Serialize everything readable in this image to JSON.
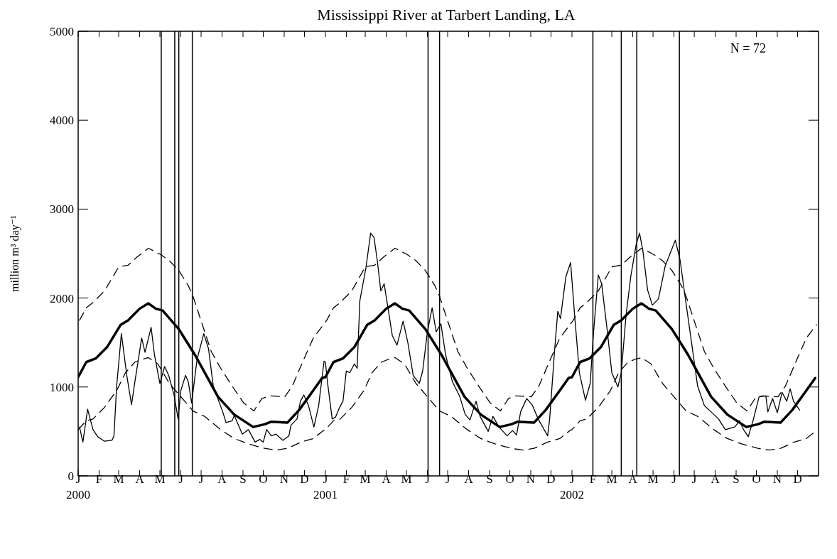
{
  "chart_data": {
    "type": "line",
    "title": "Mississippi River at Tarbert Landing, LA",
    "ylabel": "million m³ day⁻¹",
    "annotations": [
      "N = 72"
    ],
    "marker": "none",
    "xlim": [
      "2000-01-01",
      "2003-01-01"
    ],
    "xticks": [
      {
        "value": "2000-01-01",
        "label": "J\n2000"
      },
      {
        "value": "2000-02-01",
        "label": "F"
      },
      {
        "value": "2000-03-01",
        "label": "M"
      },
      {
        "value": "2000-04-01",
        "label": "A"
      },
      {
        "value": "2000-05-01",
        "label": "M"
      },
      {
        "value": "2000-06-01",
        "label": "J"
      },
      {
        "value": "2000-07-01",
        "label": "J"
      },
      {
        "value": "2000-08-01",
        "label": "A"
      },
      {
        "value": "2000-09-01",
        "label": "S"
      },
      {
        "value": "2000-10-01",
        "label": "O"
      },
      {
        "value": "2000-11-01",
        "label": "N"
      },
      {
        "value": "2000-12-01",
        "label": "D"
      },
      {
        "value": "2001-01-01",
        "label": "J\n2001"
      },
      {
        "value": "2001-02-01",
        "label": "F"
      },
      {
        "value": "2001-03-01",
        "label": "M"
      },
      {
        "value": "2001-04-01",
        "label": "A"
      },
      {
        "value": "2001-05-01",
        "label": "M"
      },
      {
        "value": "2001-06-01",
        "label": "J"
      },
      {
        "value": "2001-07-01",
        "label": "J"
      },
      {
        "value": "2001-08-01",
        "label": "A"
      },
      {
        "value": "2001-09-01",
        "label": "S"
      },
      {
        "value": "2001-10-01",
        "label": "O"
      },
      {
        "value": "2001-11-01",
        "label": "N"
      },
      {
        "value": "2001-12-01",
        "label": "D"
      },
      {
        "value": "2002-01-01",
        "label": "J\n2002"
      },
      {
        "value": "2002-02-01",
        "label": "F"
      },
      {
        "value": "2002-03-01",
        "label": "M"
      },
      {
        "value": "2002-04-01",
        "label": "A"
      },
      {
        "value": "2002-05-01",
        "label": "M"
      },
      {
        "value": "2002-06-01",
        "label": "J"
      },
      {
        "value": "2002-07-01",
        "label": "J"
      },
      {
        "value": "2002-08-01",
        "label": "A"
      },
      {
        "value": "2002-09-01",
        "label": "S"
      },
      {
        "value": "2002-10-01",
        "label": "O"
      },
      {
        "value": "2002-11-01",
        "label": "N"
      },
      {
        "value": "2002-12-01",
        "label": "D"
      }
    ],
    "ylim": [
      0,
      5000
    ],
    "yticks": [
      0,
      1000,
      2000,
      3000,
      4000,
      5000
    ],
    "ref_lines": [
      {
        "axis": "x",
        "value": "2000-05-03",
        "color": "#000000"
      },
      {
        "axis": "x",
        "value": "2000-05-23",
        "color": "#000000"
      },
      {
        "axis": "x",
        "value": "2000-05-29",
        "color": "#000000"
      },
      {
        "axis": "x",
        "value": "2000-06-18",
        "color": "#000000"
      },
      {
        "axis": "x",
        "value": "2001-06-02",
        "color": "#000000"
      },
      {
        "axis": "x",
        "value": "2001-06-19",
        "color": "#000000"
      },
      {
        "axis": "x",
        "value": "2002-02-01",
        "color": "#000000"
      },
      {
        "axis": "x",
        "value": "2002-03-15",
        "color": "#000000"
      },
      {
        "axis": "x",
        "value": "2002-04-07",
        "color": "#000000"
      },
      {
        "axis": "x",
        "value": "2002-06-09",
        "color": "#000000"
      }
    ],
    "series": [
      {
        "color": "#000000",
        "line_style": "solid",
        "x": [
          "2000-01-03",
          "2000-01-08",
          "2000-01-15",
          "2000-01-23",
          "2000-01-30",
          "2000-02-09",
          "2000-02-20",
          "2000-02-23",
          "2000-02-27",
          "2000-03-05",
          "2000-03-13",
          "2000-03-20",
          "2000-03-25",
          "2000-04-01",
          "2000-04-04",
          "2000-04-09",
          "2000-04-18",
          "2000-04-23",
          "2000-05-01",
          "2000-05-08",
          "2000-05-14",
          "2000-05-22",
          "2000-05-28",
          "2000-06-01",
          "2000-06-08",
          "2000-06-12",
          "2000-06-17",
          "2000-06-25",
          "2000-07-05",
          "2000-07-12",
          "2000-07-19",
          "2000-08-02",
          "2000-08-07",
          "2000-08-16",
          "2000-08-19",
          "2000-08-31",
          "2000-09-09",
          "2000-09-19",
          "2000-09-26",
          "2000-10-01",
          "2000-10-06",
          "2000-10-13",
          "2000-10-20",
          "2000-10-30",
          "2000-11-08",
          "2000-11-11",
          "2000-11-20",
          "2000-11-25",
          "2000-11-30",
          "2000-12-07",
          "2000-12-15",
          "2000-12-22",
          "2000-12-30",
          "2001-01-01",
          "2001-01-04",
          "2001-01-11",
          "2001-01-16",
          "2001-01-22",
          "2001-01-27",
          "2001-02-01",
          "2001-02-06",
          "2001-02-13",
          "2001-02-17",
          "2001-02-21",
          "2001-03-02",
          "2001-03-09",
          "2001-03-14",
          "2001-03-19",
          "2001-03-24",
          "2001-03-29",
          "2001-04-03",
          "2001-04-10",
          "2001-04-17",
          "2001-04-26",
          "2001-05-03",
          "2001-05-11",
          "2001-05-20",
          "2001-05-25",
          "2001-06-01",
          "2001-06-08",
          "2001-06-14",
          "2001-06-21",
          "2001-06-28",
          "2001-07-08",
          "2001-07-19",
          "2001-07-27",
          "2001-08-03",
          "2001-08-12",
          "2001-08-18",
          "2001-08-30",
          "2001-09-06",
          "2001-09-15",
          "2001-09-27",
          "2001-10-05",
          "2001-10-11",
          "2001-10-17",
          "2001-10-26",
          "2001-11-03",
          "2001-11-12",
          "2001-11-26",
          "2001-11-29",
          "2001-12-06",
          "2001-12-11",
          "2001-12-15",
          "2001-12-23",
          "2001-12-30",
          "2002-01-05",
          "2002-01-12",
          "2002-01-21",
          "2002-01-28",
          "2002-02-02",
          "2002-02-09",
          "2002-02-14",
          "2002-02-22",
          "2002-03-01",
          "2002-03-10",
          "2002-03-15",
          "2002-03-22",
          "2002-03-29",
          "2002-04-06",
          "2002-04-11",
          "2002-04-16",
          "2002-04-23",
          "2002-04-30",
          "2002-05-09",
          "2002-05-19",
          "2002-06-03",
          "2002-06-10",
          "2002-06-17",
          "2002-06-27",
          "2002-07-06",
          "2002-07-16",
          "2002-07-26",
          "2002-08-06",
          "2002-08-16",
          "2002-08-30",
          "2002-09-06",
          "2002-09-12",
          "2002-09-19",
          "2002-09-26",
          "2002-10-05",
          "2002-10-15",
          "2002-10-18",
          "2002-10-25",
          "2002-11-01",
          "2002-11-08",
          "2002-11-15",
          "2002-11-20",
          "2002-11-25",
          "2002-12-04"
        ],
        "values": [
          550,
          380,
          750,
          520,
          440,
          390,
          400,
          450,
          1010,
          1600,
          1130,
          800,
          1060,
          1400,
          1550,
          1390,
          1670,
          1360,
          1040,
          1230,
          1130,
          910,
          640,
          960,
          1130,
          1060,
          820,
          1310,
          1600,
          1430,
          1010,
          720,
          600,
          620,
          680,
          470,
          520,
          380,
          410,
          380,
          520,
          450,
          470,
          400,
          450,
          570,
          640,
          840,
          910,
          790,
          550,
          790,
          1290,
          1280,
          1060,
          640,
          660,
          770,
          840,
          1180,
          1160,
          1260,
          1210,
          1970,
          2340,
          2730,
          2680,
          2410,
          2080,
          2160,
          1920,
          1580,
          1470,
          1740,
          1500,
          1130,
          1040,
          1180,
          1620,
          1890,
          1620,
          1710,
          1360,
          1060,
          890,
          690,
          630,
          840,
          670,
          500,
          670,
          550,
          450,
          510,
          460,
          720,
          870,
          800,
          640,
          450,
          640,
          1380,
          1850,
          1770,
          2240,
          2400,
          1800,
          1160,
          850,
          1040,
          1620,
          2260,
          2160,
          1650,
          1160,
          1000,
          1160,
          1800,
          2240,
          2600,
          2730,
          2530,
          2090,
          1920,
          1990,
          2360,
          2650,
          2430,
          2040,
          1500,
          1010,
          790,
          720,
          640,
          520,
          550,
          620,
          520,
          440,
          620,
          890,
          900,
          720,
          870,
          710,
          940,
          840,
          980,
          840,
          740
        ]
      },
      {
        "color": "#000000",
        "line_style": "solid",
        "x": [
          "2000-01-01",
          "2000-01-13",
          "2000-01-27",
          "2000-02-13",
          "2000-03-04",
          "2000-03-15",
          "2000-04-01",
          "2000-04-14",
          "2000-04-25",
          "2000-05-05",
          "2000-05-29",
          "2000-06-22",
          "2000-07-26",
          "2000-08-19",
          "2000-09-16",
          "2000-10-03",
          "2000-10-13",
          "2000-11-06",
          "2000-11-23",
          "2000-12-14",
          "2000-12-27",
          "2001-01-01",
          "2001-01-13",
          "2001-01-27",
          "2001-02-13",
          "2001-03-04",
          "2001-03-15",
          "2001-04-01",
          "2001-04-14",
          "2001-04-25",
          "2001-05-05",
          "2001-05-29",
          "2001-06-22",
          "2001-07-26",
          "2001-08-19",
          "2001-09-16",
          "2001-10-03",
          "2001-10-13",
          "2001-11-06",
          "2001-11-23",
          "2001-12-14",
          "2001-12-27",
          "2002-01-01",
          "2002-01-13",
          "2002-01-27",
          "2002-02-13",
          "2002-03-04",
          "2002-03-15",
          "2002-04-01",
          "2002-04-14",
          "2002-04-25",
          "2002-05-05",
          "2002-05-29",
          "2002-06-22",
          "2002-07-26",
          "2002-08-19",
          "2002-09-16",
          "2002-10-03",
          "2002-10-13",
          "2002-11-06",
          "2002-11-23",
          "2002-12-14",
          "2002-12-27"
        ],
        "values": [
          1110,
          1280,
          1320,
          1450,
          1700,
          1750,
          1880,
          1940,
          1880,
          1860,
          1650,
          1360,
          890,
          690,
          550,
          580,
          610,
          600,
          740,
          960,
          1100,
          1110,
          1280,
          1320,
          1450,
          1700,
          1750,
          1880,
          1940,
          1880,
          1860,
          1650,
          1360,
          890,
          690,
          550,
          580,
          610,
          600,
          740,
          960,
          1100,
          1110,
          1280,
          1320,
          1450,
          1700,
          1750,
          1880,
          1940,
          1880,
          1860,
          1650,
          1360,
          890,
          690,
          550,
          580,
          610,
          600,
          740,
          960,
          1100
        ]
      },
      {
        "color": "#000000",
        "line_style": "dashed",
        "x": [
          "2000-01-03",
          "2000-01-13",
          "2000-01-23",
          "2000-02-09",
          "2000-03-01",
          "2000-03-15",
          "2000-03-28",
          "2000-04-14",
          "2000-05-02",
          "2000-05-15",
          "2000-05-29",
          "2000-06-12",
          "2000-06-19",
          "2000-07-02",
          "2000-07-16",
          "2000-07-30",
          "2000-08-16",
          "2000-09-02",
          "2000-09-17",
          "2000-09-29",
          "2000-10-10",
          "2000-11-02",
          "2000-11-13",
          "2000-11-30",
          "2000-12-14",
          "2000-12-29",
          "2001-01-03",
          "2001-01-13",
          "2001-01-23",
          "2001-02-09",
          "2001-03-01",
          "2001-03-15",
          "2001-03-28",
          "2001-04-14",
          "2001-05-02",
          "2001-05-15",
          "2001-05-29",
          "2001-06-12",
          "2001-06-19",
          "2001-07-02",
          "2001-07-16",
          "2001-07-30",
          "2001-08-16",
          "2001-09-02",
          "2001-09-17",
          "2001-09-29",
          "2001-10-10",
          "2001-11-02",
          "2001-11-13",
          "2001-11-30",
          "2001-12-14",
          "2001-12-29",
          "2002-01-03",
          "2002-01-13",
          "2002-01-23",
          "2002-02-09",
          "2002-03-01",
          "2002-03-15",
          "2002-03-28",
          "2002-04-14",
          "2002-05-02",
          "2002-05-15",
          "2002-05-29",
          "2002-06-12",
          "2002-06-19",
          "2002-07-02",
          "2002-07-16",
          "2002-07-30",
          "2002-08-16",
          "2002-09-02",
          "2002-09-17",
          "2002-09-29",
          "2002-10-10",
          "2002-11-02",
          "2002-11-13",
          "2002-11-30",
          "2002-12-14",
          "2002-12-29"
        ],
        "values": [
          1750,
          1890,
          1950,
          2080,
          2350,
          2370,
          2460,
          2560,
          2490,
          2420,
          2310,
          2140,
          2020,
          1720,
          1400,
          1210,
          1010,
          820,
          730,
          870,
          900,
          890,
          1010,
          1310,
          1550,
          1700,
          1750,
          1890,
          1950,
          2080,
          2350,
          2370,
          2460,
          2560,
          2490,
          2420,
          2310,
          2140,
          2020,
          1720,
          1400,
          1210,
          1010,
          820,
          730,
          870,
          900,
          890,
          1010,
          1310,
          1550,
          1700,
          1750,
          1890,
          1950,
          2080,
          2350,
          2370,
          2460,
          2560,
          2490,
          2420,
          2310,
          2140,
          2020,
          1720,
          1400,
          1210,
          1010,
          820,
          730,
          870,
          900,
          890,
          1010,
          1310,
          1550,
          1700
        ]
      },
      {
        "color": "#000000",
        "line_style": "dashed",
        "x": [
          "2000-01-01",
          "2000-01-13",
          "2000-01-23",
          "2000-02-09",
          "2000-02-27",
          "2000-03-11",
          "2000-03-25",
          "2000-04-04",
          "2000-04-14",
          "2000-04-28",
          "2000-05-15",
          "2000-06-01",
          "2000-06-19",
          "2000-07-06",
          "2000-07-30",
          "2000-08-19",
          "2000-09-09",
          "2000-10-03",
          "2000-10-20",
          "2000-11-06",
          "2000-11-26",
          "2000-12-14",
          "2000-12-29",
          "2001-01-01",
          "2001-01-13",
          "2001-01-23",
          "2001-02-09",
          "2001-02-27",
          "2001-03-11",
          "2001-03-25",
          "2001-04-04",
          "2001-04-14",
          "2001-04-28",
          "2001-05-15",
          "2001-06-01",
          "2001-06-19",
          "2001-07-06",
          "2001-07-30",
          "2001-08-19",
          "2001-09-09",
          "2001-10-03",
          "2001-10-20",
          "2001-11-06",
          "2001-11-26",
          "2001-12-14",
          "2001-12-29",
          "2002-01-01",
          "2002-01-13",
          "2002-01-23",
          "2002-02-09",
          "2002-02-27",
          "2002-03-11",
          "2002-03-25",
          "2002-04-04",
          "2002-04-14",
          "2002-04-28",
          "2002-05-15",
          "2002-06-01",
          "2002-06-19",
          "2002-07-06",
          "2002-07-30",
          "2002-08-19",
          "2002-09-09",
          "2002-10-03",
          "2002-10-20",
          "2002-11-06",
          "2002-11-26",
          "2002-12-14",
          "2002-12-29"
        ],
        "values": [
          520,
          620,
          640,
          770,
          960,
          1160,
          1280,
          1310,
          1330,
          1260,
          1040,
          890,
          730,
          670,
          520,
          420,
          360,
          310,
          290,
          310,
          380,
          420,
          510,
          520,
          620,
          640,
          770,
          960,
          1160,
          1280,
          1310,
          1330,
          1260,
          1040,
          890,
          730,
          670,
          520,
          420,
          360,
          310,
          290,
          310,
          380,
          420,
          510,
          520,
          620,
          640,
          770,
          960,
          1160,
          1280,
          1310,
          1330,
          1260,
          1040,
          890,
          730,
          670,
          520,
          420,
          360,
          310,
          290,
          310,
          380,
          420,
          510
        ]
      }
    ]
  }
}
